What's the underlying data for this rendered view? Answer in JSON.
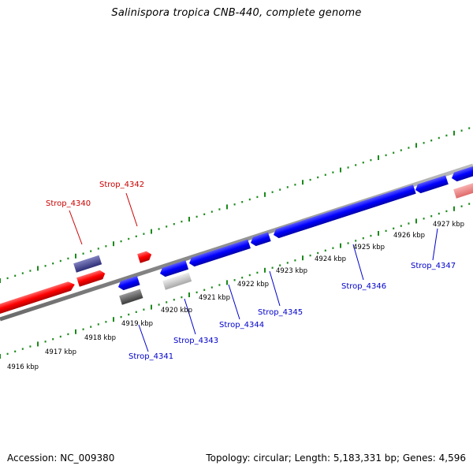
{
  "title": "Salinispora tropica CNB-440, complete genome",
  "footer": {
    "accession": "Accession: NC_009380",
    "summary": "Topology: circular; Length: 5,183,331 bp; Genes: 4,596"
  },
  "colors": {
    "forward_gene": "#ff0000",
    "forward_gene_light": "#f08080",
    "reverse_gene": "#0000ff",
    "forward_label": "#cc0000",
    "reverse_label": "#0000cc",
    "backbone": "#8a8a8a",
    "tick": "#1a8a1a",
    "other_gene_purple": "#4a4a9a",
    "other_gene_gray": "#606060",
    "other_gene_lightgray": "#c8c8c8"
  },
  "kbp_labels": [
    "4916 kbp",
    "4917 kbp",
    "4918 kbp",
    "4919 kbp",
    "4920 kbp",
    "4921 kbp",
    "4922 kbp",
    "4923 kbp",
    "4924 kbp",
    "4925 kbp",
    "4926 kbp",
    "4927 kbp"
  ],
  "gene_labels": {
    "forward": [
      "Strop_4340",
      "Strop_4342"
    ],
    "reverse": [
      "Strop_4341",
      "Strop_4343",
      "Strop_4344",
      "Strop_4345",
      "Strop_4346",
      "Strop_4347"
    ]
  }
}
